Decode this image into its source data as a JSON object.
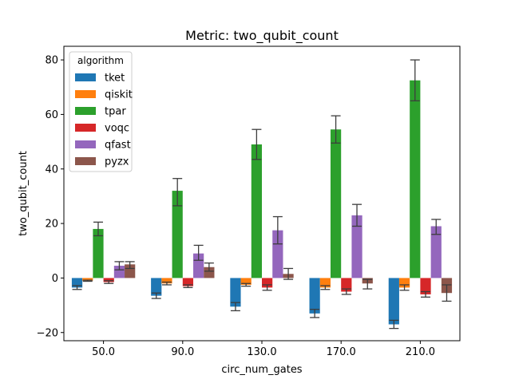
{
  "chart_data": {
    "type": "bar",
    "title": "Metric: two_qubit_count",
    "xlabel": "circ_num_gates",
    "ylabel": "two_qubit_count",
    "ylim": [
      -23,
      85
    ],
    "yticks": [
      -20,
      0,
      20,
      40,
      60,
      80
    ],
    "grid": false,
    "legend": {
      "title": "algorithm",
      "placement": "top-left"
    },
    "categories": [
      "50.0",
      "90.0",
      "130.0",
      "170.0",
      "210.0"
    ],
    "series": [
      {
        "name": "tket",
        "color": "#1f77b4",
        "values": [
          -3.5,
          -6.5,
          -10.5,
          -13.0,
          -17.0
        ],
        "err_low": [
          -4.2,
          -7.5,
          -12.0,
          -14.5,
          -18.5
        ],
        "err_high": [
          -2.8,
          -5.5,
          -9.0,
          -11.5,
          -15.5
        ]
      },
      {
        "name": "qiskit",
        "color": "#ff7f0e",
        "values": [
          -1.0,
          -2.0,
          -2.5,
          -3.5,
          -3.5
        ],
        "err_low": [
          -1.2,
          -2.5,
          -3.0,
          -4.2,
          -4.5
        ],
        "err_high": [
          -0.8,
          -1.5,
          -2.0,
          -2.8,
          -2.5
        ]
      },
      {
        "name": "tpar",
        "color": "#2ca02c",
        "values": [
          18,
          32,
          49,
          54.5,
          72.5
        ],
        "err_low": [
          15.5,
          26.5,
          43.5,
          49.5,
          65.0
        ],
        "err_high": [
          20.5,
          36.5,
          54.5,
          59.5,
          80.0
        ]
      },
      {
        "name": "voqc",
        "color": "#d62728",
        "values": [
          -1.5,
          -3.0,
          -3.5,
          -5.0,
          -6.0
        ],
        "err_low": [
          -2.0,
          -3.5,
          -4.5,
          -6.0,
          -7.0
        ],
        "err_high": [
          -1.0,
          -2.5,
          -2.5,
          -4.0,
          -5.0
        ]
      },
      {
        "name": "qfast",
        "color": "#9467bd",
        "values": [
          4.5,
          9.0,
          17.5,
          23.0,
          19.0
        ],
        "err_low": [
          3.0,
          6.5,
          12.5,
          19.0,
          16.0
        ],
        "err_high": [
          6.0,
          12.0,
          22.5,
          27.0,
          21.5
        ]
      },
      {
        "name": "pyzx",
        "color": "#8c564b",
        "values": [
          5.0,
          4.0,
          1.5,
          -2.0,
          -5.5
        ],
        "err_low": [
          3.5,
          2.5,
          -0.5,
          -4.0,
          -8.5
        ],
        "err_high": [
          6.0,
          5.5,
          3.5,
          -0.5,
          -2.5
        ]
      }
    ]
  }
}
